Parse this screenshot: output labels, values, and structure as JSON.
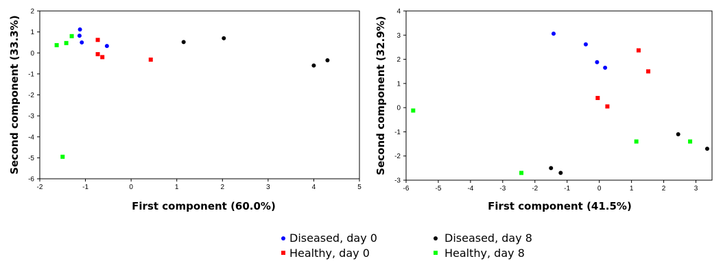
{
  "chart_data": [
    {
      "type": "scatter",
      "xlabel": "First component (60.0%)",
      "ylabel": "Second component (33.3%)",
      "xlim": [
        -2,
        5
      ],
      "ylim": [
        -6,
        2
      ],
      "xticks": [
        -2,
        -1,
        0,
        1,
        2,
        3,
        4,
        5
      ],
      "yticks": [
        -6,
        -5,
        -4,
        -3,
        -2,
        -1,
        0,
        1,
        2
      ],
      "grid": false,
      "series": [
        {
          "name": "Diseased, day 0",
          "color": "#0000ff",
          "marker": "circle",
          "points": [
            [
              -1.12,
              1.12
            ],
            [
              -1.13,
              0.82
            ],
            [
              -1.08,
              0.5
            ],
            [
              -0.53,
              0.33
            ]
          ]
        },
        {
          "name": "Healthy, day 0",
          "color": "#ff0000",
          "marker": "square",
          "points": [
            [
              -0.73,
              0.62
            ],
            [
              -0.73,
              -0.06
            ],
            [
              -0.63,
              -0.2
            ],
            [
              0.43,
              -0.32
            ]
          ]
        },
        {
          "name": "Diseased, day 8",
          "color": "#000000",
          "marker": "circle",
          "points": [
            [
              1.15,
              0.52
            ],
            [
              2.03,
              0.7
            ],
            [
              4.0,
              -0.6
            ],
            [
              4.3,
              -0.35
            ]
          ]
        },
        {
          "name": "Healthy, day 8",
          "color": "#00ff00",
          "marker": "square",
          "points": [
            [
              -1.63,
              0.37
            ],
            [
              -1.42,
              0.47
            ],
            [
              -1.3,
              0.8
            ],
            [
              -1.5,
              -4.95
            ]
          ]
        }
      ]
    },
    {
      "type": "scatter",
      "xlabel": "First component (41.5%)",
      "ylabel": "Second component (32.9%)",
      "xlim": [
        -6,
        3.5
      ],
      "ylim": [
        -3,
        4
      ],
      "xticks": [
        -6,
        -5,
        -4,
        -3,
        -2,
        -1,
        0,
        1,
        2,
        3
      ],
      "yticks": [
        -3,
        -2,
        -1,
        0,
        1,
        2,
        3,
        4
      ],
      "grid": false,
      "series": [
        {
          "name": "Diseased, day 0",
          "color": "#0000ff",
          "marker": "circle",
          "points": [
            [
              -1.42,
              3.06
            ],
            [
              -0.42,
              2.62
            ],
            [
              -0.07,
              1.88
            ],
            [
              0.18,
              1.65
            ]
          ]
        },
        {
          "name": "Healthy, day 0",
          "color": "#ff0000",
          "marker": "square",
          "points": [
            [
              1.22,
              2.37
            ],
            [
              1.52,
              1.5
            ],
            [
              -0.05,
              0.4
            ],
            [
              0.25,
              0.05
            ]
          ]
        },
        {
          "name": "Diseased, day 8",
          "color": "#000000",
          "marker": "circle",
          "points": [
            [
              2.45,
              -1.1
            ],
            [
              3.35,
              -1.7
            ],
            [
              -1.5,
              -2.5
            ],
            [
              -1.2,
              -2.7
            ]
          ]
        },
        {
          "name": "Healthy, day 8",
          "color": "#00ff00",
          "marker": "square",
          "points": [
            [
              -5.78,
              -0.12
            ],
            [
              -2.42,
              -2.7
            ],
            [
              1.15,
              -1.4
            ],
            [
              2.82,
              -1.4
            ]
          ]
        }
      ]
    }
  ],
  "legend": {
    "placement": "bottom-center",
    "items": [
      {
        "label": "Diseased, day 0",
        "color": "#0000ff",
        "marker": "circle"
      },
      {
        "label": "Diseased, day 8",
        "color": "#000000",
        "marker": "circle"
      },
      {
        "label": "Healthy, day 0",
        "color": "#ff0000",
        "marker": "square"
      },
      {
        "label": "Healthy, day 8",
        "color": "#00ff00",
        "marker": "square"
      }
    ]
  }
}
